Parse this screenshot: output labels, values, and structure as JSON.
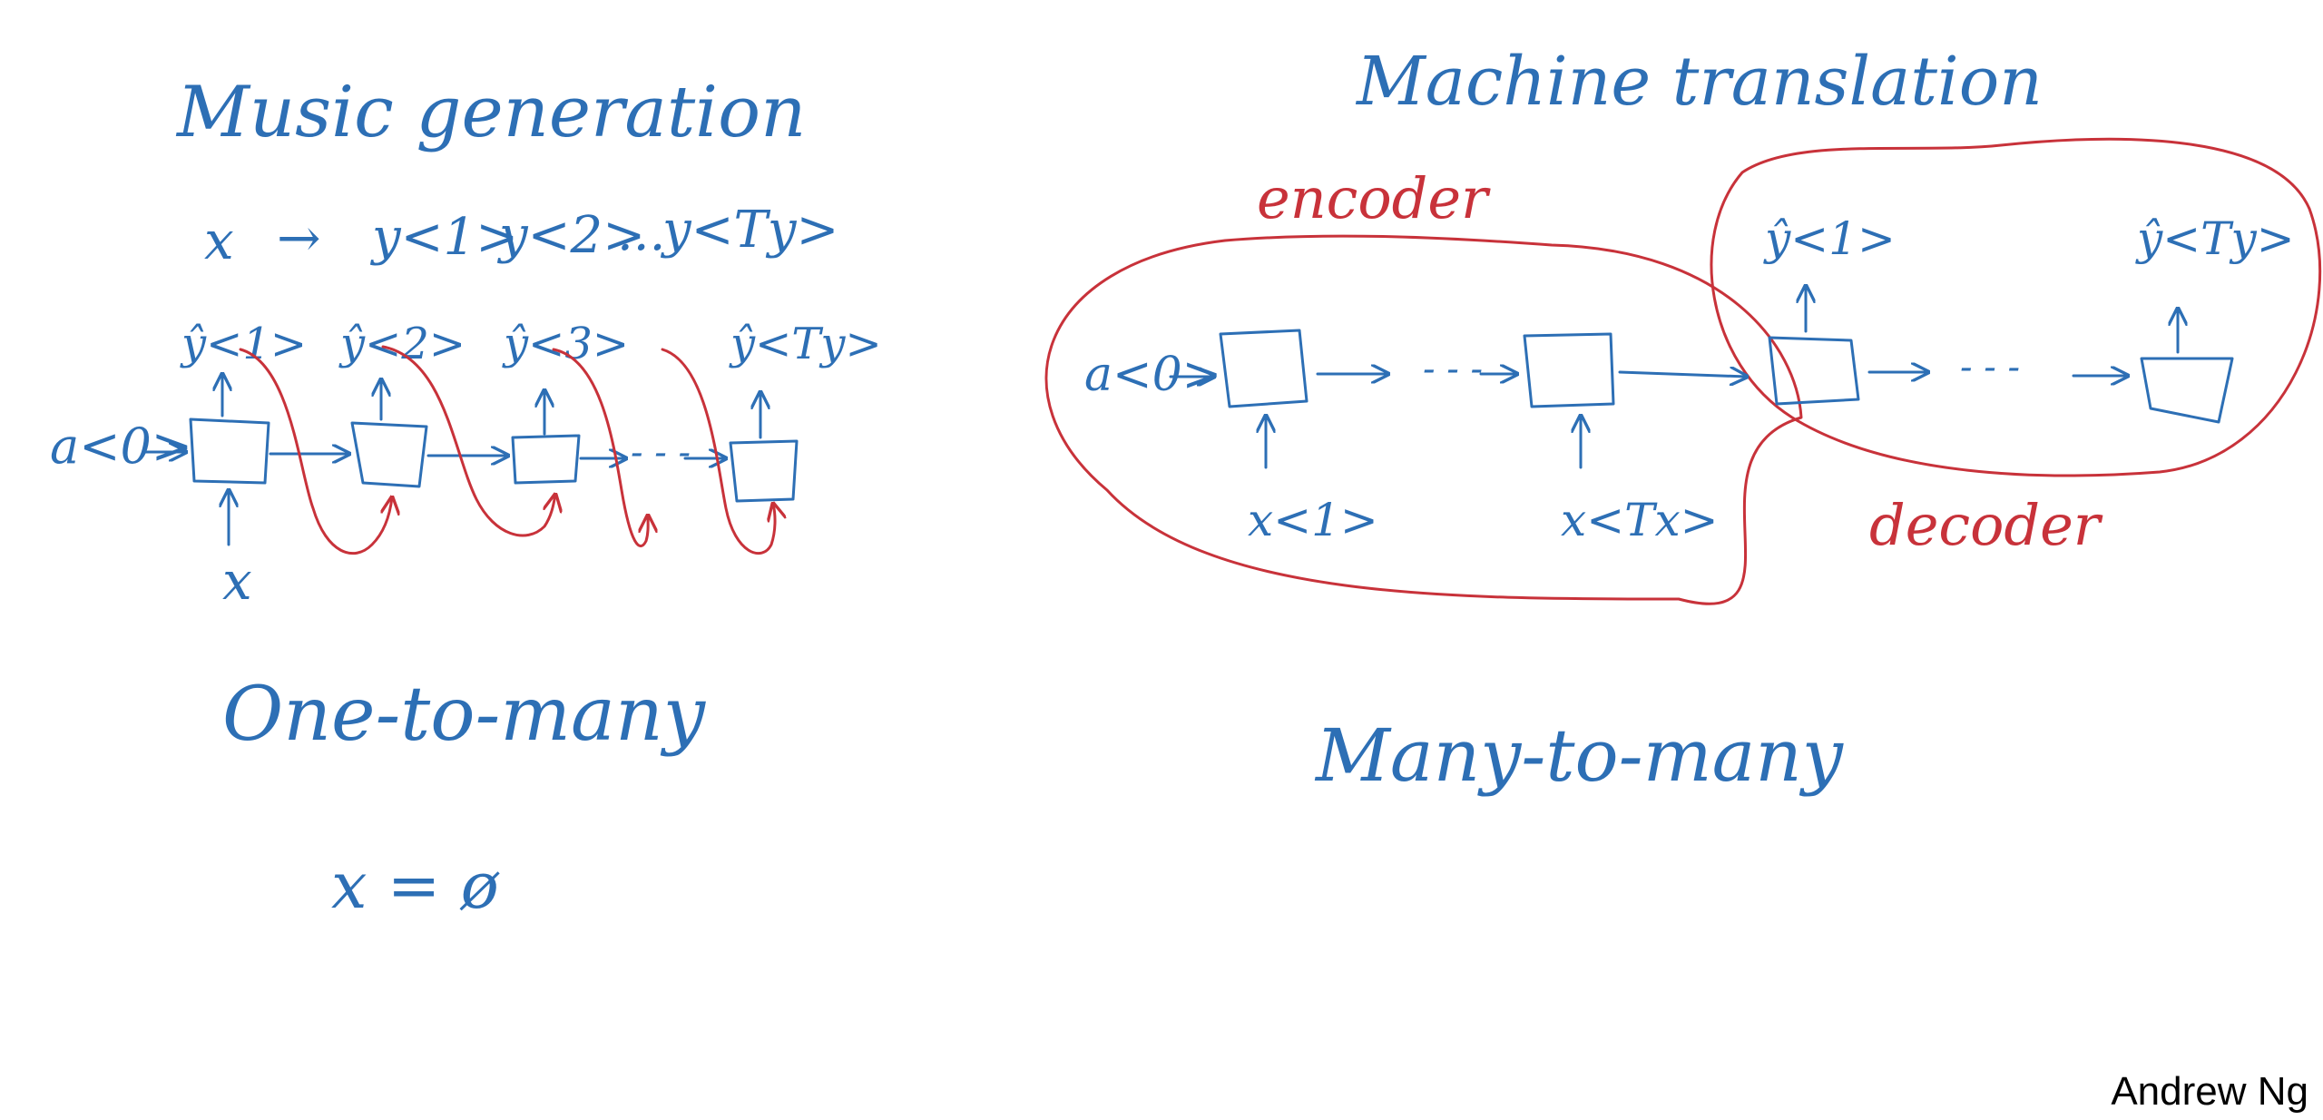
{
  "left_panel": {
    "title": "Music generation",
    "equation": {
      "input": "x",
      "arrow": "→",
      "outputs": [
        "y<1>",
        "y<2>",
        "...",
        "y<Ty>"
      ]
    },
    "activation": "a<0>",
    "input_label": "x",
    "step_outputs": [
      "ŷ<1>",
      "ŷ<2>",
      "ŷ<3>",
      "ŷ<Ty>"
    ],
    "dots": "- - -",
    "category": "One-to-many",
    "note": "x = ø"
  },
  "right_panel": {
    "title": "Machine translation",
    "encoder_label": "encoder",
    "decoder_label": "decoder",
    "activation": "a<0>",
    "encoder_inputs": [
      "x<1>",
      "x<Tx>"
    ],
    "decoder_outputs": [
      "ŷ<1>",
      "ŷ<Ty>"
    ],
    "dots": "- - -",
    "category": "Many-to-many"
  },
  "credit": "Andrew Ng",
  "colors": {
    "blue_ink": "#2d6fb5",
    "red_ink": "#c8323a",
    "background": "#ffffff"
  }
}
